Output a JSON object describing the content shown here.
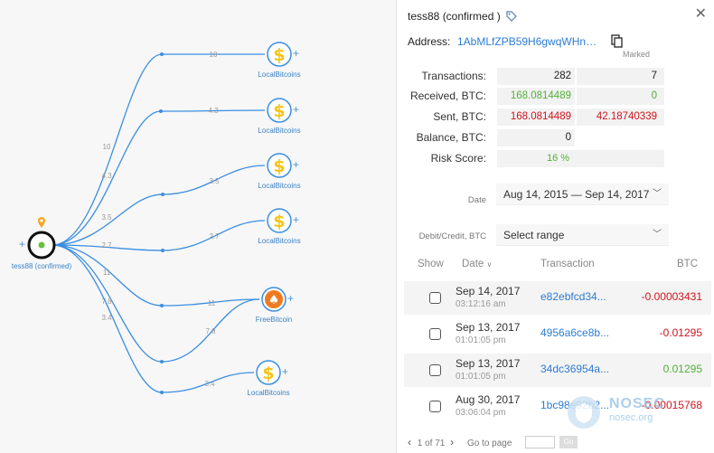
{
  "graph": {
    "center": {
      "label": "tess88 (confirmed)"
    },
    "nodes": [
      {
        "label": "LocalBitcoins",
        "icon": "dollar-icon",
        "amount": "10"
      },
      {
        "label": "LocalBitcoins",
        "icon": "dollar-icon",
        "amount": "4.3"
      },
      {
        "label": "LocalBitcoins",
        "icon": "dollar-icon",
        "amount": "3.5"
      },
      {
        "label": "LocalBitcoins",
        "icon": "dollar-icon",
        "amount": "2.7"
      },
      {
        "label": "FreeBitcoin",
        "icon": "spade-icon",
        "amount": "11"
      },
      {
        "label": "LocalBitcoins",
        "icon": "dollar-icon",
        "amount": "7.8"
      },
      {
        "label": "LocalBitcoins",
        "icon": "dollar-icon",
        "amount": "3.4"
      }
    ],
    "colors": {
      "edge": "#3a8ee0",
      "dollar": "#f5c518",
      "spade": "#f07a1f"
    }
  },
  "panel": {
    "title": "tess88 (confirmed )",
    "address_label": "Address:",
    "address_value": "1AbMLfZPB59H6gwqWHnA...",
    "marked_header": "Marked",
    "stats": [
      {
        "label": "Transactions:",
        "value": "282",
        "marked": "7"
      },
      {
        "label": "Received, BTC:",
        "value": "168.0814489",
        "marked": "0"
      },
      {
        "label": "Sent, BTC:",
        "value": "168.0814489",
        "marked": "42.18740339"
      },
      {
        "label": "Balance, BTC:",
        "value": "0",
        "marked": ""
      },
      {
        "label": "Risk Score:",
        "value": "16 %",
        "marked": ""
      }
    ],
    "date_label": "Date",
    "date_value": "Aug 14, 2015 — Sep 14, 2017",
    "debit_label": "Debit/Credit, BTC",
    "debit_placeholder": "Select range",
    "table": {
      "headers": {
        "show": "Show",
        "date": "Date",
        "transaction": "Transaction",
        "btc": "BTC"
      },
      "rows": [
        {
          "date": "Sep 14, 2017",
          "time": "03:12:16 am",
          "tx": "e82ebfcd34...",
          "btc": "-0.00003431",
          "type": "out"
        },
        {
          "date": "Sep 13, 2017",
          "time": "01:01:05 pm",
          "tx": "4956a6ce8b...",
          "btc": "-0.01295",
          "type": "out"
        },
        {
          "date": "Sep 13, 2017",
          "time": "01:01:05 pm",
          "tx": "34dc36954a...",
          "btc": "0.01295",
          "type": "in"
        },
        {
          "date": "Aug 30, 2017",
          "time": "03:06:04 pm",
          "tx": "1bc98e92b2...",
          "btc": "-0.00015768",
          "type": "out"
        }
      ]
    },
    "pager": {
      "current": "1",
      "total": "of 71",
      "goto_label": "Go to page",
      "go_button": "Go"
    }
  },
  "watermark": {
    "name": "NOSEC",
    "sub": "nosec.org"
  }
}
